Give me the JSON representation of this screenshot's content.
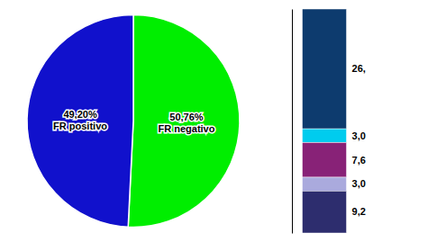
{
  "chart_data": [
    {
      "type": "pie",
      "categories": [
        "FR negativo",
        "FR positivo"
      ],
      "values": [
        50.76,
        49.2
      ],
      "value_labels": [
        "50,76%",
        "49,20%"
      ],
      "colors": [
        "#00ee00",
        "#1111cc"
      ],
      "data_labels": true
    },
    {
      "type": "bar",
      "stacked": true,
      "categories": [
        null
      ],
      "tick_labels": false,
      "data_labels": true,
      "ylim": [
        0,
        49.0
      ],
      "series": [
        {
          "color": "#0d3b6e",
          "values": [
            26.2
          ],
          "value_labels": [
            "26,"
          ]
        },
        {
          "color": "#00ccee",
          "values": [
            3.0
          ],
          "value_labels": [
            "3,0"
          ]
        },
        {
          "color": "#882277",
          "values": [
            7.6
          ],
          "value_labels": [
            "7,6"
          ]
        },
        {
          "color": "#aaaadd",
          "values": [
            3.0
          ],
          "value_labels": [
            "3,0"
          ]
        },
        {
          "color": "#2d2d6e",
          "values": [
            9.2
          ],
          "value_labels": [
            "9,2"
          ]
        }
      ]
    }
  ]
}
